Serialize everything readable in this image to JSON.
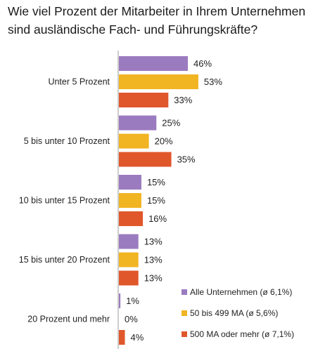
{
  "chart_data": {
    "type": "bar",
    "orientation": "horizontal",
    "title": "Wie viel Prozent der Mitarbeiter in Ihrem Unternehmen\nsind ausländische Fach- und Führungskräfte?",
    "categories": [
      "Unter 5 Prozent",
      "5 bis unter 10 Prozent",
      "10 bis unter 15 Prozent",
      "15 bis unter 20 Prozent",
      "20 Prozent und mehr"
    ],
    "series": [
      {
        "name": "Alle Unternehmen (ø 6,1%)",
        "color": "#9b7bc0",
        "values": [
          46,
          25,
          15,
          13,
          1
        ],
        "labels": [
          "46%",
          "25%",
          "15%",
          "13%",
          "1%"
        ]
      },
      {
        "name": "50 bis 499 MA (ø 5,6%)",
        "color": "#f1b422",
        "values": [
          53,
          20,
          15,
          13,
          0
        ],
        "labels": [
          "53%",
          "20%",
          "15%",
          "13%",
          "0%"
        ]
      },
      {
        "name": "500 MA oder mehr (ø 7,1%)",
        "color": "#e0572b",
        "values": [
          33,
          35,
          16,
          13,
          4
        ],
        "labels": [
          "33%",
          "35%",
          "16%",
          "13%",
          "4%"
        ]
      }
    ],
    "xlim": [
      0,
      60
    ],
    "grid": false,
    "legend_position": "bottom-right",
    "axis_color": "#999999"
  }
}
